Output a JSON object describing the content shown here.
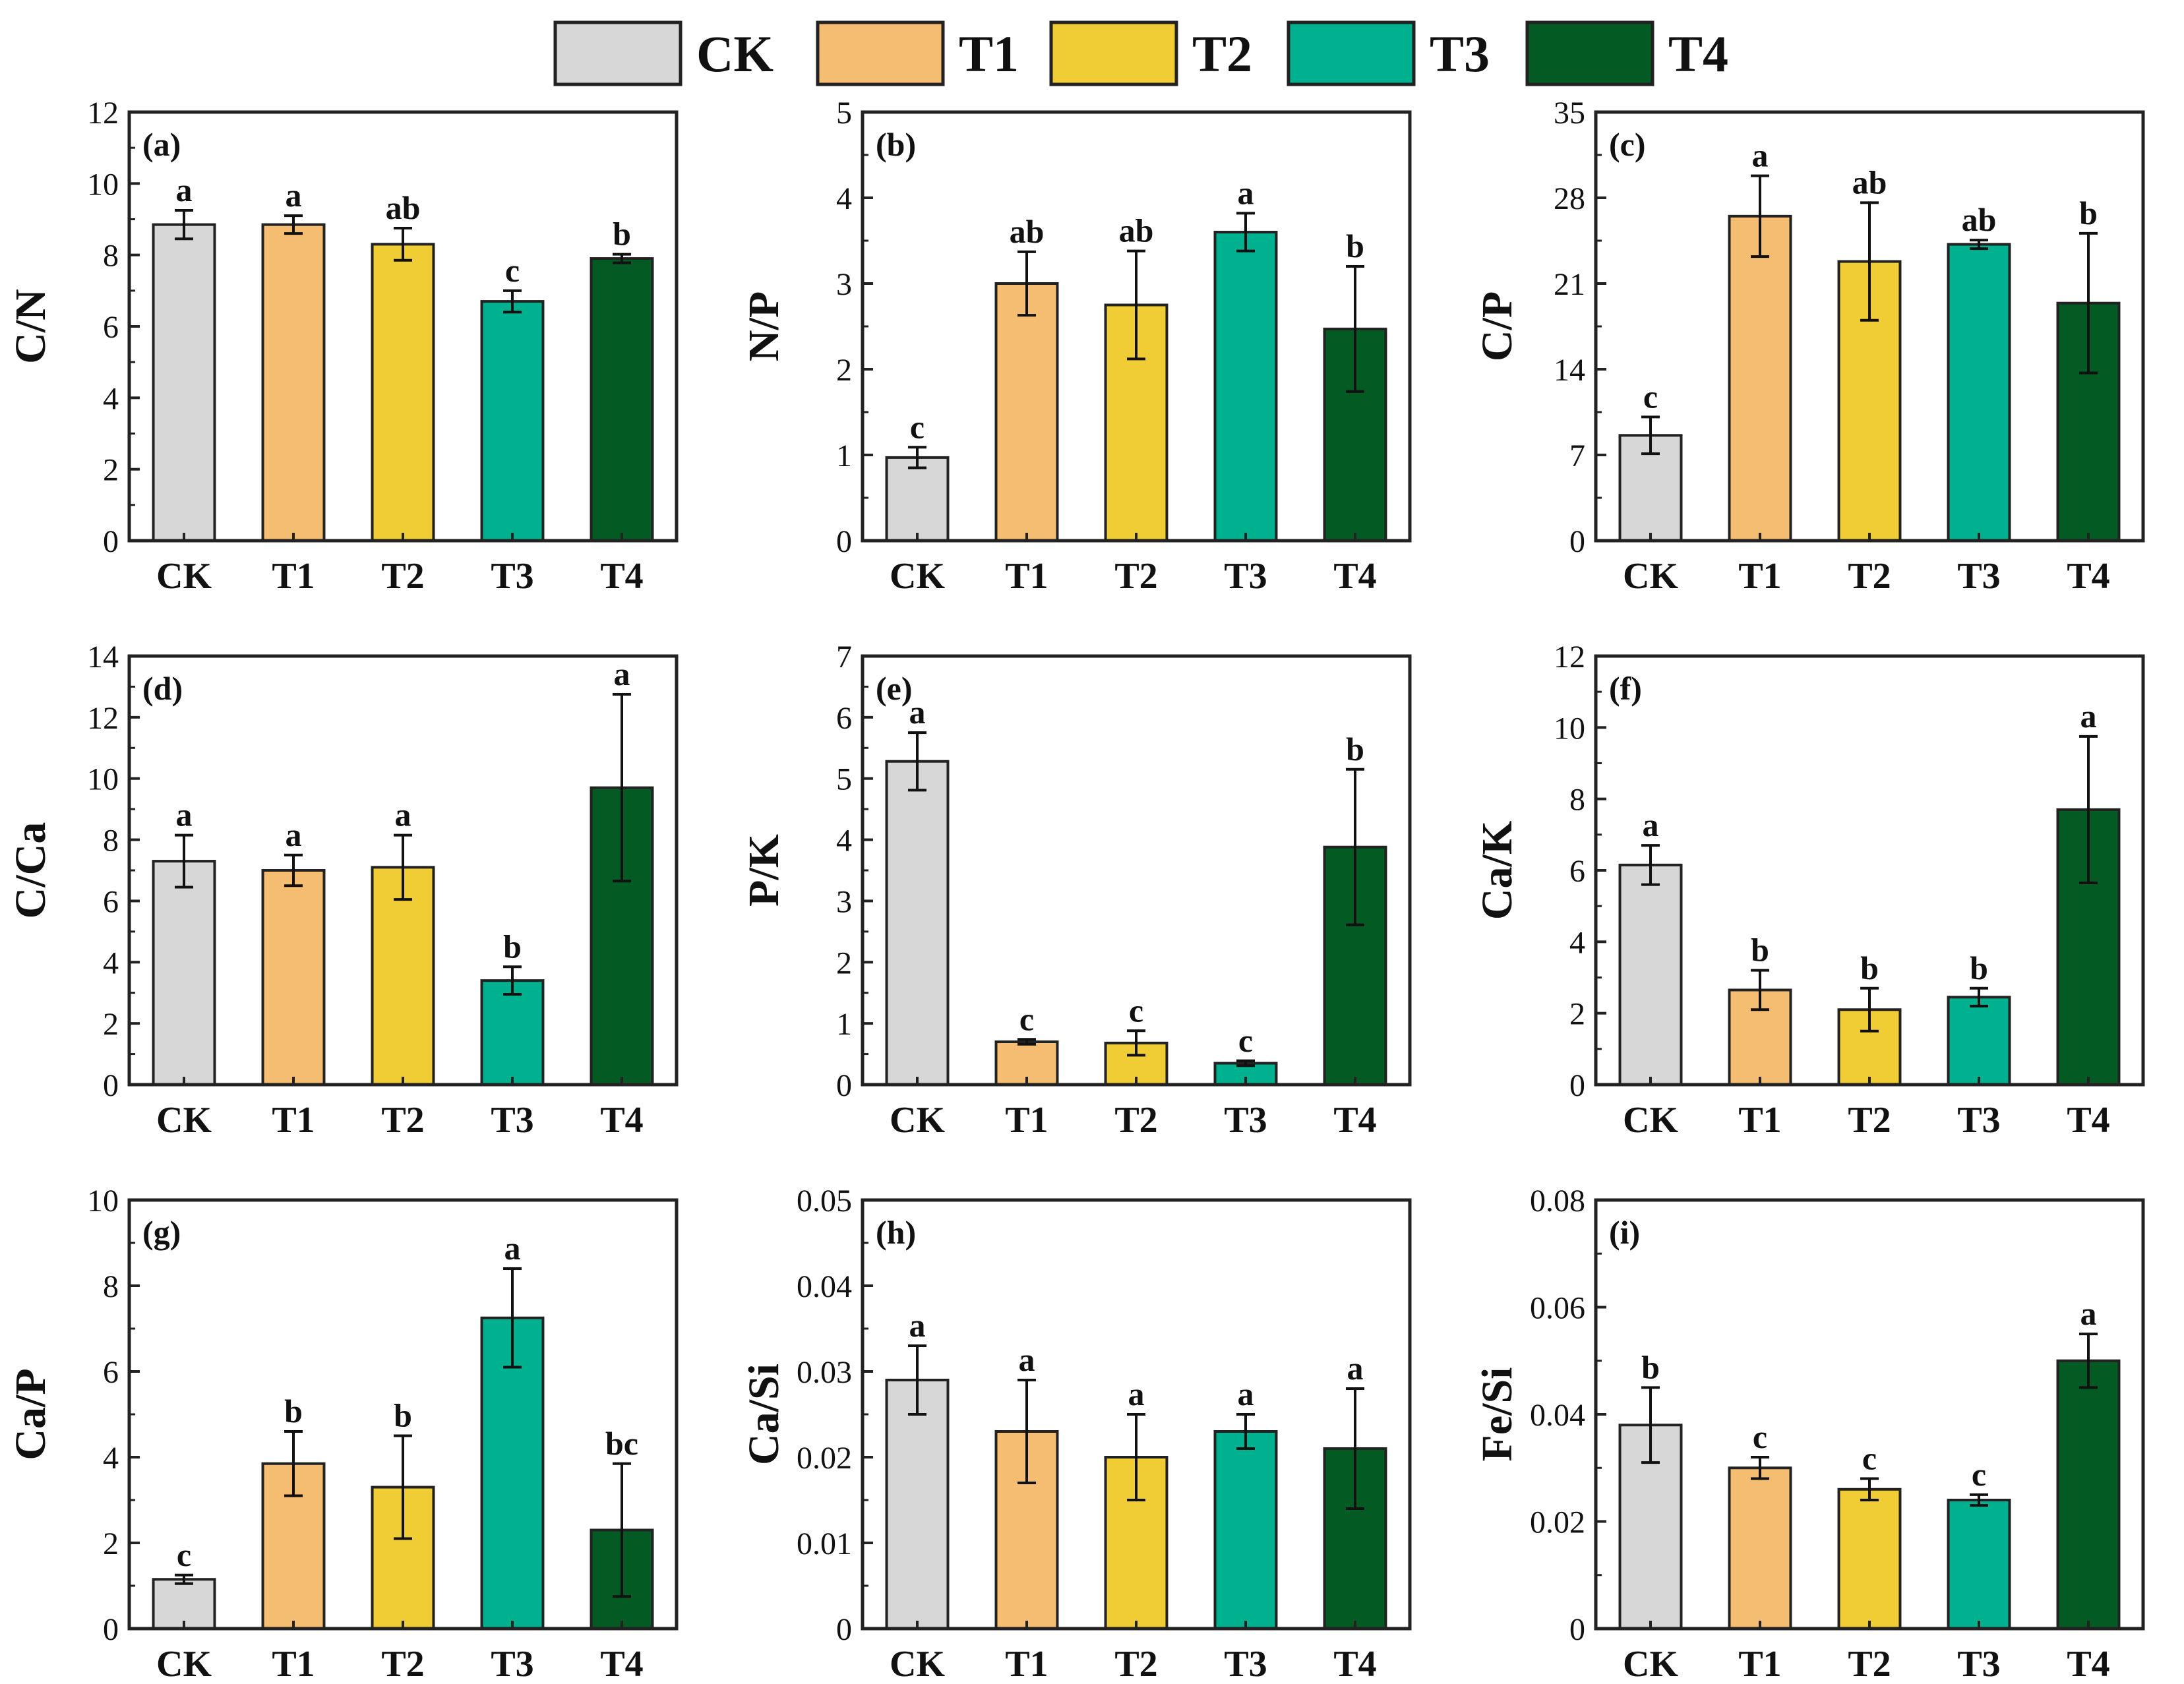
{
  "legend": [
    {
      "name": "CK",
      "color": "#d7d7d7"
    },
    {
      "name": "T1",
      "color": "#f5bd72"
    },
    {
      "name": "T2",
      "color": "#f0cd35"
    },
    {
      "name": "T3",
      "color": "#00b18f"
    },
    {
      "name": "T4",
      "color": "#035a22"
    }
  ],
  "chart_data": [
    {
      "type": "bar",
      "panel_label": "(a)",
      "ylabel": "C/N",
      "categories": [
        "CK",
        "T1",
        "T2",
        "T3",
        "T4"
      ],
      "values": [
        8.85,
        8.85,
        8.3,
        6.7,
        7.9
      ],
      "errors": [
        0.4,
        0.25,
        0.45,
        0.3,
        0.12
      ],
      "letters": [
        "a",
        "a",
        "ab",
        "c",
        "b"
      ],
      "ylim": [
        0,
        12
      ],
      "yticks": [
        0,
        2,
        4,
        6,
        8,
        10,
        12
      ],
      "ytick_labels": [
        "0",
        "2",
        "4",
        "6",
        "8",
        "10",
        "12"
      ]
    },
    {
      "type": "bar",
      "panel_label": "(b)",
      "ylabel": "N/P",
      "categories": [
        "CK",
        "T1",
        "T2",
        "T3",
        "T4"
      ],
      "values": [
        0.97,
        3.0,
        2.75,
        3.6,
        2.47
      ],
      "errors": [
        0.12,
        0.37,
        0.63,
        0.22,
        0.73
      ],
      "letters": [
        "c",
        "ab",
        "ab",
        "a",
        "b"
      ],
      "ylim": [
        0,
        5
      ],
      "yticks": [
        0,
        1,
        2,
        3,
        4,
        5
      ],
      "ytick_labels": [
        "0",
        "1",
        "2",
        "3",
        "4",
        "5"
      ]
    },
    {
      "type": "bar",
      "panel_label": "(c)",
      "ylabel": "C/P",
      "categories": [
        "CK",
        "T1",
        "T2",
        "T3",
        "T4"
      ],
      "values": [
        8.6,
        26.5,
        22.8,
        24.2,
        19.4
      ],
      "errors": [
        1.5,
        3.3,
        4.8,
        0.35,
        5.7
      ],
      "letters": [
        "c",
        "a",
        "ab",
        "ab",
        "b"
      ],
      "ylim": [
        0,
        35
      ],
      "yticks": [
        0,
        7,
        14,
        21,
        28,
        35
      ],
      "ytick_labels": [
        "0",
        "7",
        "14",
        "21",
        "28",
        "35"
      ]
    },
    {
      "type": "bar",
      "panel_label": "(d)",
      "ylabel": "C/Ca",
      "categories": [
        "CK",
        "T1",
        "T2",
        "T3",
        "T4"
      ],
      "values": [
        7.3,
        7.0,
        7.1,
        3.4,
        9.7
      ],
      "errors": [
        0.85,
        0.5,
        1.05,
        0.45,
        3.05
      ],
      "letters": [
        "a",
        "a",
        "a",
        "b",
        "a"
      ],
      "ylim": [
        0,
        14
      ],
      "yticks": [
        0,
        2,
        4,
        6,
        8,
        10,
        12,
        14
      ],
      "ytick_labels": [
        "0",
        "2",
        "4",
        "6",
        "8",
        "10",
        "12",
        "14"
      ]
    },
    {
      "type": "bar",
      "panel_label": "(e)",
      "ylabel": "P/K",
      "categories": [
        "CK",
        "T1",
        "T2",
        "T3",
        "T4"
      ],
      "values": [
        5.28,
        0.7,
        0.68,
        0.35,
        3.88
      ],
      "errors": [
        0.47,
        0.04,
        0.2,
        0.04,
        1.27
      ],
      "letters": [
        "a",
        "c",
        "c",
        "c",
        "b"
      ],
      "ylim": [
        0,
        7
      ],
      "yticks": [
        0,
        1,
        2,
        3,
        4,
        5,
        6,
        7
      ],
      "ytick_labels": [
        "0",
        "1",
        "2",
        "3",
        "4",
        "5",
        "6",
        "7"
      ]
    },
    {
      "type": "bar",
      "panel_label": "(f)",
      "ylabel": "Ca/K",
      "categories": [
        "CK",
        "T1",
        "T2",
        "T3",
        "T4"
      ],
      "values": [
        6.15,
        2.65,
        2.1,
        2.45,
        7.7
      ],
      "errors": [
        0.55,
        0.55,
        0.6,
        0.25,
        2.05
      ],
      "letters": [
        "a",
        "b",
        "b",
        "b",
        "a"
      ],
      "ylim": [
        0,
        12
      ],
      "yticks": [
        0,
        2,
        4,
        6,
        8,
        10,
        12
      ],
      "ytick_labels": [
        "0",
        "2",
        "4",
        "6",
        "8",
        "10",
        "12"
      ]
    },
    {
      "type": "bar",
      "panel_label": "(g)",
      "ylabel": "Ca/P",
      "categories": [
        "CK",
        "T1",
        "T2",
        "T3",
        "T4"
      ],
      "values": [
        1.15,
        3.85,
        3.3,
        7.25,
        2.3
      ],
      "errors": [
        0.1,
        0.75,
        1.2,
        1.15,
        1.55
      ],
      "letters": [
        "c",
        "b",
        "b",
        "a",
        "bc"
      ],
      "ylim": [
        0,
        10
      ],
      "yticks": [
        0,
        2,
        4,
        6,
        8,
        10
      ],
      "ytick_labels": [
        "0",
        "2",
        "4",
        "6",
        "8",
        "10"
      ]
    },
    {
      "type": "bar",
      "panel_label": "(h)",
      "ylabel": "Ca/Si",
      "categories": [
        "CK",
        "T1",
        "T2",
        "T3",
        "T4"
      ],
      "values": [
        0.029,
        0.023,
        0.02,
        0.023,
        0.021
      ],
      "errors": [
        0.004,
        0.006,
        0.005,
        0.002,
        0.007
      ],
      "letters": [
        "a",
        "a",
        "a",
        "a",
        "a"
      ],
      "ylim": [
        0,
        0.05
      ],
      "yticks": [
        0,
        0.01,
        0.02,
        0.03,
        0.04,
        0.05
      ],
      "ytick_labels": [
        "0",
        "0.01",
        "0.02",
        "0.03",
        "0.04",
        "0.05"
      ]
    },
    {
      "type": "bar",
      "panel_label": "(i)",
      "ylabel": "Fe/Si",
      "categories": [
        "CK",
        "T1",
        "T2",
        "T3",
        "T4"
      ],
      "values": [
        0.038,
        0.03,
        0.026,
        0.024,
        0.05
      ],
      "errors": [
        0.007,
        0.002,
        0.002,
        0.001,
        0.005
      ],
      "letters": [
        "b",
        "c",
        "c",
        "c",
        "a"
      ],
      "ylim": [
        0,
        0.08
      ],
      "yticks": [
        0,
        0.02,
        0.04,
        0.06,
        0.08
      ],
      "ytick_labels": [
        "0",
        "0.02",
        "0.04",
        "0.06",
        "0.08"
      ]
    }
  ]
}
